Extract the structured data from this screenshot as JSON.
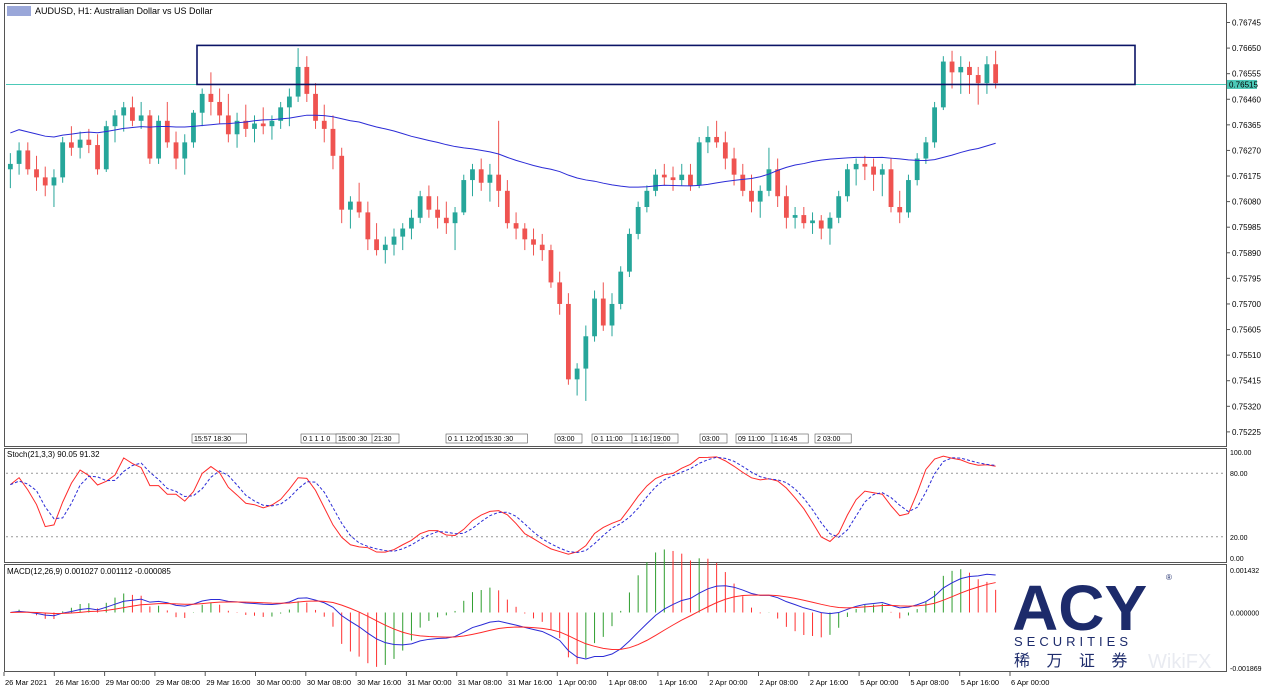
{
  "chart_data": {
    "type": "candlestick",
    "symbol": "AUDUSD",
    "title": "AUDUSD, H1:  Australian Dollar vs US Dollar",
    "current_price": "0.76515",
    "price_axis_labels": [
      "0.76745",
      "0.76650",
      "0.76555",
      "0.76460",
      "0.76365",
      "0.76270",
      "0.76175",
      "0.76080",
      "0.75985",
      "0.75890",
      "0.75795",
      "0.75700",
      "0.75605",
      "0.75510",
      "0.75415",
      "0.75320",
      "0.75225"
    ],
    "ylim": [
      0.7518,
      0.7681
    ],
    "resistance_zone": [
      0.76515,
      0.7666
    ],
    "time_labels": [
      "26 Mar 2021",
      "26 Mar 16:00",
      "29 Mar 00:00",
      "29 Mar 08:00",
      "29 Mar 16:00",
      "30 Mar 00:00",
      "30 Mar 08:00",
      "30 Mar 16:00",
      "31 Mar 00:00",
      "31 Mar 08:00",
      "31 Mar 16:00",
      "1 Apr 00:00",
      "1 Apr 08:00",
      "1 Apr 16:00",
      "2 Apr 00:00",
      "2 Apr 08:00",
      "2 Apr 16:00",
      "5 Apr 00:00",
      "5 Apr 08:00",
      "5 Apr 16:00",
      "6 Apr 00:00"
    ],
    "event_labels": [
      "15:57 18:30",
      "0 1 1 1 0",
      "15:00 :30",
      "21:30",
      "0 1 1 12:00",
      "15:30 :30",
      "03:00",
      "0 1 11:00",
      "1 16:3",
      "19:00",
      "03:00",
      "09 11:00",
      "1 16:45",
      "2 03:00"
    ],
    "candles": [
      [
        0.762,
        0.7626,
        0.7613,
        0.7622
      ],
      [
        0.7622,
        0.763,
        0.7618,
        0.7627
      ],
      [
        0.7627,
        0.763,
        0.7618,
        0.762
      ],
      [
        0.762,
        0.7625,
        0.7612,
        0.7617
      ],
      [
        0.7617,
        0.7621,
        0.761,
        0.7614
      ],
      [
        0.7614,
        0.762,
        0.7606,
        0.7617
      ],
      [
        0.7617,
        0.7632,
        0.7615,
        0.763
      ],
      [
        0.763,
        0.7636,
        0.7625,
        0.7628
      ],
      [
        0.7628,
        0.7634,
        0.7624,
        0.7631
      ],
      [
        0.7631,
        0.7635,
        0.7626,
        0.7629
      ],
      [
        0.7629,
        0.7633,
        0.7618,
        0.762
      ],
      [
        0.762,
        0.7638,
        0.7619,
        0.7636
      ],
      [
        0.7636,
        0.7642,
        0.763,
        0.764
      ],
      [
        0.764,
        0.7645,
        0.7634,
        0.7643
      ],
      [
        0.7643,
        0.7647,
        0.7636,
        0.7638
      ],
      [
        0.7638,
        0.7645,
        0.7635,
        0.764
      ],
      [
        0.764,
        0.7642,
        0.7622,
        0.7624
      ],
      [
        0.7624,
        0.764,
        0.7622,
        0.7638
      ],
      [
        0.7638,
        0.7645,
        0.7628,
        0.763
      ],
      [
        0.763,
        0.7634,
        0.762,
        0.7624
      ],
      [
        0.7624,
        0.7633,
        0.7618,
        0.763
      ],
      [
        0.763,
        0.7642,
        0.7628,
        0.7641
      ],
      [
        0.7641,
        0.765,
        0.7636,
        0.7648
      ],
      [
        0.7648,
        0.7656,
        0.764,
        0.7645
      ],
      [
        0.7645,
        0.765,
        0.7637,
        0.764
      ],
      [
        0.764,
        0.7648,
        0.763,
        0.7633
      ],
      [
        0.7633,
        0.7641,
        0.7628,
        0.7638
      ],
      [
        0.7638,
        0.7644,
        0.7632,
        0.7635
      ],
      [
        0.7635,
        0.764,
        0.763,
        0.7637
      ],
      [
        0.7637,
        0.7643,
        0.7633,
        0.7636
      ],
      [
        0.7636,
        0.764,
        0.7631,
        0.7638
      ],
      [
        0.7638,
        0.7645,
        0.7635,
        0.7643
      ],
      [
        0.7643,
        0.765,
        0.7636,
        0.7647
      ],
      [
        0.7647,
        0.7665,
        0.7645,
        0.7658
      ],
      [
        0.7658,
        0.7662,
        0.7645,
        0.7648
      ],
      [
        0.7648,
        0.7652,
        0.7635,
        0.7638
      ],
      [
        0.7638,
        0.7644,
        0.763,
        0.7635
      ],
      [
        0.7635,
        0.764,
        0.762,
        0.7625
      ],
      [
        0.7625,
        0.7628,
        0.76,
        0.7605
      ],
      [
        0.7605,
        0.761,
        0.7598,
        0.7608
      ],
      [
        0.7608,
        0.7615,
        0.7602,
        0.7604
      ],
      [
        0.7604,
        0.7608,
        0.759,
        0.7594
      ],
      [
        0.7594,
        0.76,
        0.7588,
        0.759
      ],
      [
        0.759,
        0.7595,
        0.7585,
        0.7592
      ],
      [
        0.7592,
        0.7598,
        0.7588,
        0.7595
      ],
      [
        0.7595,
        0.76,
        0.759,
        0.7598
      ],
      [
        0.7598,
        0.7605,
        0.7594,
        0.7602
      ],
      [
        0.7602,
        0.7612,
        0.76,
        0.761
      ],
      [
        0.761,
        0.7614,
        0.7602,
        0.7605
      ],
      [
        0.7605,
        0.761,
        0.7598,
        0.7602
      ],
      [
        0.7602,
        0.7608,
        0.7596,
        0.76
      ],
      [
        0.76,
        0.7606,
        0.759,
        0.7604
      ],
      [
        0.7604,
        0.7618,
        0.7603,
        0.7616
      ],
      [
        0.7616,
        0.7622,
        0.761,
        0.762
      ],
      [
        0.762,
        0.7624,
        0.7612,
        0.7615
      ],
      [
        0.7615,
        0.7622,
        0.7608,
        0.7618
      ],
      [
        0.7618,
        0.7638,
        0.7606,
        0.7612
      ],
      [
        0.7612,
        0.7616,
        0.7598,
        0.76
      ],
      [
        0.76,
        0.7604,
        0.7594,
        0.7598
      ],
      [
        0.7598,
        0.76,
        0.759,
        0.7594
      ],
      [
        0.7594,
        0.7598,
        0.7588,
        0.7592
      ],
      [
        0.7592,
        0.7596,
        0.7586,
        0.759
      ],
      [
        0.759,
        0.7592,
        0.7576,
        0.7578
      ],
      [
        0.7578,
        0.7582,
        0.7566,
        0.757
      ],
      [
        0.757,
        0.7574,
        0.754,
        0.7542
      ],
      [
        0.7542,
        0.7548,
        0.7536,
        0.7546
      ],
      [
        0.7546,
        0.7562,
        0.7534,
        0.7558
      ],
      [
        0.7558,
        0.7575,
        0.7556,
        0.7572
      ],
      [
        0.7572,
        0.7578,
        0.756,
        0.7562
      ],
      [
        0.7562,
        0.7574,
        0.7558,
        0.757
      ],
      [
        0.757,
        0.7584,
        0.7568,
        0.7582
      ],
      [
        0.7582,
        0.7598,
        0.758,
        0.7596
      ],
      [
        0.7596,
        0.7608,
        0.7594,
        0.7606
      ],
      [
        0.7606,
        0.7614,
        0.7604,
        0.7612
      ],
      [
        0.7612,
        0.762,
        0.761,
        0.7618
      ],
      [
        0.7618,
        0.7622,
        0.7614,
        0.7617
      ],
      [
        0.7617,
        0.7621,
        0.7612,
        0.7616
      ],
      [
        0.7616,
        0.7622,
        0.7614,
        0.7618
      ],
      [
        0.7618,
        0.7622,
        0.7612,
        0.7614
      ],
      [
        0.7614,
        0.7632,
        0.7613,
        0.763
      ],
      [
        0.763,
        0.7636,
        0.7626,
        0.7632
      ],
      [
        0.7632,
        0.7638,
        0.7628,
        0.763
      ],
      [
        0.763,
        0.7634,
        0.762,
        0.7624
      ],
      [
        0.7624,
        0.7628,
        0.7614,
        0.7618
      ],
      [
        0.7618,
        0.7622,
        0.761,
        0.7612
      ],
      [
        0.7612,
        0.7618,
        0.7604,
        0.7608
      ],
      [
        0.7608,
        0.7614,
        0.7602,
        0.7612
      ],
      [
        0.7612,
        0.7628,
        0.761,
        0.762
      ],
      [
        0.762,
        0.7624,
        0.7606,
        0.761
      ],
      [
        0.761,
        0.7614,
        0.7598,
        0.7602
      ],
      [
        0.7602,
        0.7606,
        0.7598,
        0.7603
      ],
      [
        0.7603,
        0.7606,
        0.7598,
        0.76
      ],
      [
        0.76,
        0.7604,
        0.7596,
        0.7601
      ],
      [
        0.7601,
        0.7603,
        0.7594,
        0.7598
      ],
      [
        0.7598,
        0.7604,
        0.7592,
        0.7602
      ],
      [
        0.7602,
        0.7612,
        0.76,
        0.761
      ],
      [
        0.761,
        0.7622,
        0.7608,
        0.762
      ],
      [
        0.762,
        0.7624,
        0.7614,
        0.7622
      ],
      [
        0.7622,
        0.7625,
        0.7616,
        0.7621
      ],
      [
        0.7621,
        0.7624,
        0.7612,
        0.7618
      ],
      [
        0.7618,
        0.7622,
        0.761,
        0.762
      ],
      [
        0.762,
        0.7624,
        0.7604,
        0.7606
      ],
      [
        0.7606,
        0.7612,
        0.76,
        0.7604
      ],
      [
        0.7604,
        0.7618,
        0.7602,
        0.7616
      ],
      [
        0.7616,
        0.7626,
        0.7614,
        0.7624
      ],
      [
        0.7624,
        0.7632,
        0.7622,
        0.763
      ],
      [
        0.763,
        0.7645,
        0.7628,
        0.7643
      ],
      [
        0.7643,
        0.7662,
        0.7642,
        0.766
      ],
      [
        0.766,
        0.7664,
        0.765,
        0.7656
      ],
      [
        0.7656,
        0.7662,
        0.7648,
        0.7658
      ],
      [
        0.7658,
        0.766,
        0.7648,
        0.7655
      ],
      [
        0.7655,
        0.7658,
        0.7644,
        0.7652
      ],
      [
        0.7652,
        0.7662,
        0.7648,
        0.7659
      ],
      [
        0.7659,
        0.7664,
        0.765,
        0.7652
      ]
    ],
    "indicators": {
      "ma_color": "#2b2bd6",
      "stoch": {
        "label": "Stoch(21,3,3) 90.05 91.32",
        "levels": [
          "100.00",
          "80.00",
          "20.00",
          "0.00"
        ]
      },
      "macd": {
        "label": "MACD(12,26,9) 0.001027 0.001112 -0.000085",
        "levels": [
          "0.001432",
          "0.000000",
          "-0.001869"
        ]
      }
    }
  },
  "colors": {
    "bull": "#26a69a",
    "bear": "#ef5350",
    "box": "#0b1466",
    "price_line": "#4cc9b8",
    "stoch_main": "#ff2a2a",
    "stoch_signal": "#2b2bd6"
  },
  "brand": {
    "logo_text": "ACY",
    "sub_text": "SECURITIES",
    "cn_text": "稀 万 证 券",
    "registered": "®"
  },
  "watermark": "WikiFX"
}
